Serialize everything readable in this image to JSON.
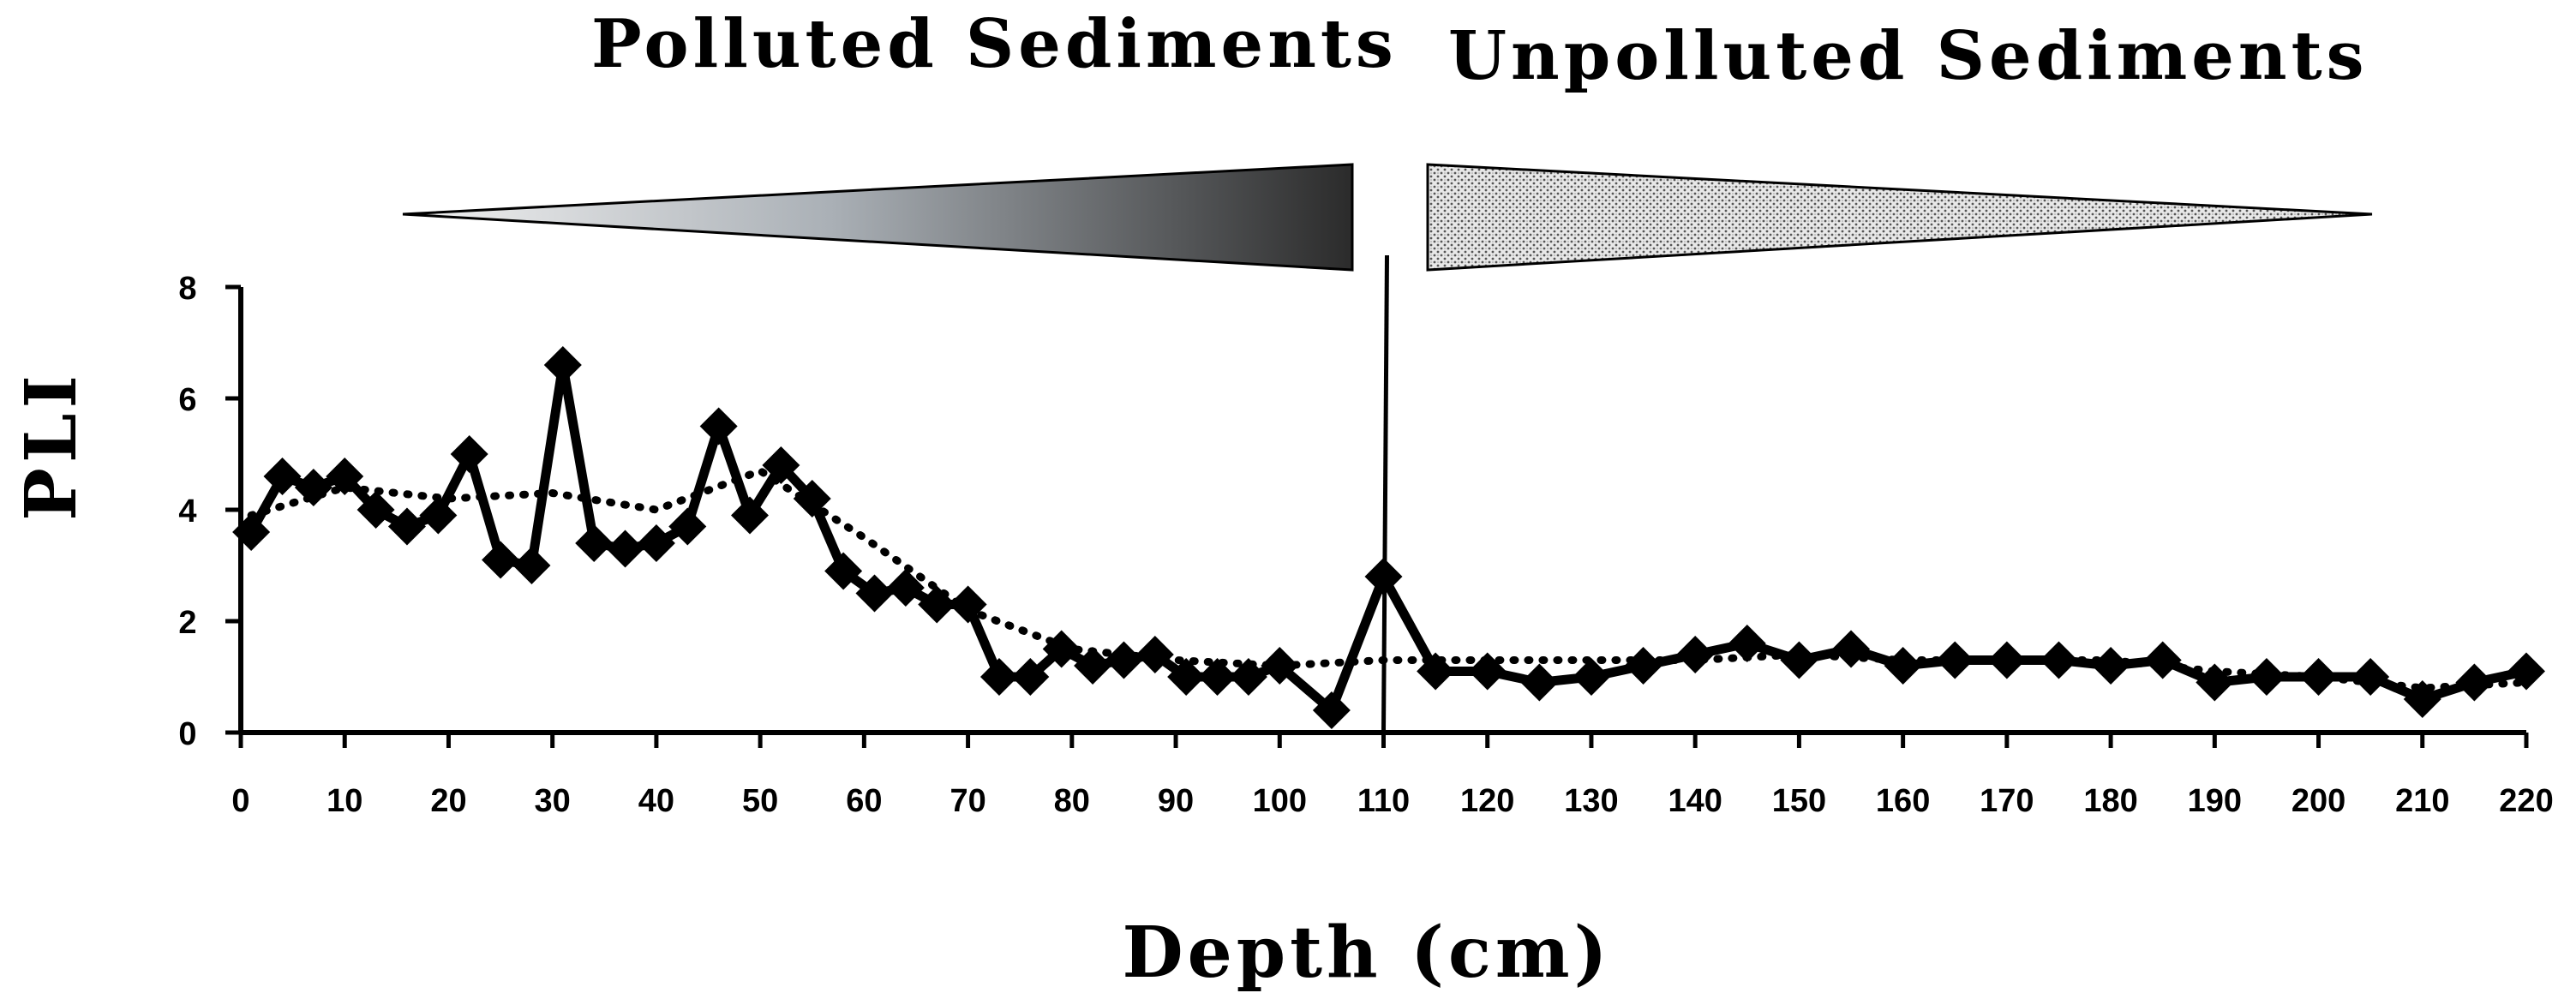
{
  "chart_data": {
    "type": "line",
    "title": "",
    "xlabel": "Depth (cm)",
    "ylabel": "PLI",
    "xlim": [
      0,
      220
    ],
    "ylim": [
      0,
      8
    ],
    "x_ticks": [
      0,
      10,
      20,
      30,
      40,
      50,
      60,
      70,
      80,
      90,
      100,
      110,
      120,
      130,
      140,
      150,
      160,
      170,
      180,
      190,
      200,
      210,
      220
    ],
    "y_ticks": [
      0,
      2,
      4,
      6,
      8
    ],
    "grid": false,
    "legend": "none",
    "annotations": {
      "left_label": "Polluted Sediments",
      "right_label": "Unpolluted Sediments",
      "boundary_depth": 110
    },
    "series": [
      {
        "style": "solid-diamond",
        "color": "#000000",
        "x": [
          1,
          4,
          7,
          10,
          13,
          16,
          19,
          22,
          25,
          28,
          31,
          34,
          37,
          40,
          43,
          46,
          49,
          52,
          55,
          58,
          61,
          64,
          67,
          70,
          73,
          76,
          79,
          82,
          85,
          88,
          91,
          94,
          97,
          100,
          105,
          110,
          115,
          120,
          125,
          130,
          135,
          140,
          145,
          150,
          155,
          160,
          165,
          170,
          175,
          180,
          185,
          190,
          195,
          200,
          205,
          210,
          215,
          220
        ],
        "values": [
          3.6,
          4.6,
          4.4,
          4.6,
          4.0,
          3.7,
          3.9,
          5.0,
          3.1,
          3.0,
          6.6,
          3.4,
          3.3,
          3.4,
          3.7,
          5.5,
          3.9,
          4.8,
          4.2,
          2.9,
          2.5,
          2.6,
          2.3,
          2.3,
          1.0,
          1.0,
          1.5,
          1.2,
          1.3,
          1.4,
          1.0,
          1.0,
          1.0,
          1.2,
          0.4,
          2.8,
          1.1,
          1.1,
          0.9,
          1.0,
          1.2,
          1.4,
          1.6,
          1.3,
          1.5,
          1.2,
          1.3,
          1.3,
          1.3,
          1.2,
          1.3,
          0.9,
          1.0,
          1.0,
          1.0,
          0.6,
          0.9,
          1.1
        ]
      },
      {
        "style": "dotted-trend",
        "color": "#000000",
        "x": [
          1,
          10,
          20,
          30,
          40,
          50,
          60,
          70,
          80,
          90,
          100,
          110,
          120,
          130,
          140,
          150,
          160,
          170,
          180,
          190,
          200,
          210,
          220
        ],
        "values": [
          3.9,
          4.4,
          4.2,
          4.3,
          4.0,
          4.7,
          3.5,
          2.2,
          1.5,
          1.3,
          1.2,
          1.3,
          1.3,
          1.3,
          1.3,
          1.4,
          1.3,
          1.3,
          1.3,
          1.1,
          1.0,
          0.8,
          0.9
        ]
      }
    ]
  }
}
